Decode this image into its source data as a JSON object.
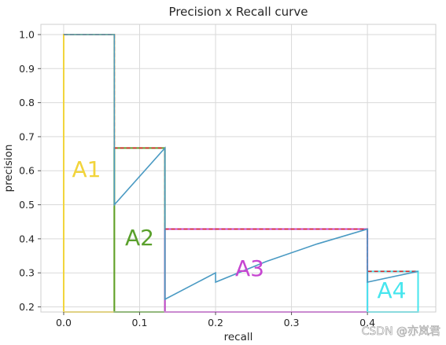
{
  "chart_data": {
    "type": "line",
    "title": "Precision x Recall curve",
    "xlabel": "recall",
    "ylabel": "precision",
    "xlim": [
      -0.03,
      0.49
    ],
    "ylim": [
      0.185,
      1.03
    ],
    "grid": true,
    "x_ticks": [
      0.0,
      0.1,
      0.2,
      0.3,
      0.4
    ],
    "x_tick_labels": [
      "0.0",
      "0.1",
      "0.2",
      "0.3",
      "0.4"
    ],
    "y_ticks": [
      0.2,
      0.3,
      0.4,
      0.5,
      0.6,
      0.7,
      0.8,
      0.9,
      1.0
    ],
    "y_tick_labels": [
      "0.2",
      "0.3",
      "0.4",
      "0.5",
      "0.6",
      "0.7",
      "0.8",
      "0.9",
      "1.0"
    ],
    "series": [
      {
        "color": "#4a9ac3",
        "x": [
          0.0,
          0.0667,
          0.0667,
          0.1333,
          0.1333,
          0.2,
          0.2,
          0.2667,
          0.3333,
          0.4,
          0.4,
          0.4667
        ],
        "y": [
          1.0,
          1.0,
          0.5,
          0.6667,
          0.2222,
          0.3,
          0.2727,
          0.3333,
          0.3846,
          0.4286,
          0.2727,
          0.3043
        ]
      }
    ],
    "interpolated_envelope": {
      "color": "#d62728",
      "style": "dashed",
      "x": [
        0.0,
        0.0667,
        0.0667,
        0.1333,
        0.1333,
        0.4,
        0.4,
        0.4667
      ],
      "y": [
        1.0,
        1.0,
        0.6667,
        0.6667,
        0.4286,
        0.4286,
        0.3043,
        0.3043
      ]
    },
    "areas": [
      {
        "label": "A1",
        "x0": 0.0,
        "x1": 0.0667,
        "height": 1.0,
        "color": "#f2d43a",
        "label_x": 0.03,
        "label_y": 0.6
      },
      {
        "label": "A2",
        "x0": 0.0667,
        "x1": 0.1333,
        "height": 0.6667,
        "color": "#5aa02c",
        "label_x": 0.1,
        "label_y": 0.4
      },
      {
        "label": "A3",
        "x0": 0.1333,
        "x1": 0.4,
        "height": 0.4286,
        "color": "#c646d1",
        "label_x": 0.245,
        "label_y": 0.31
      },
      {
        "label": "A4",
        "x0": 0.4,
        "x1": 0.4667,
        "height": 0.3043,
        "color": "#46e6ee",
        "label_x": 0.432,
        "label_y": 0.245
      }
    ]
  },
  "watermark": "CSDN @亦岚君"
}
